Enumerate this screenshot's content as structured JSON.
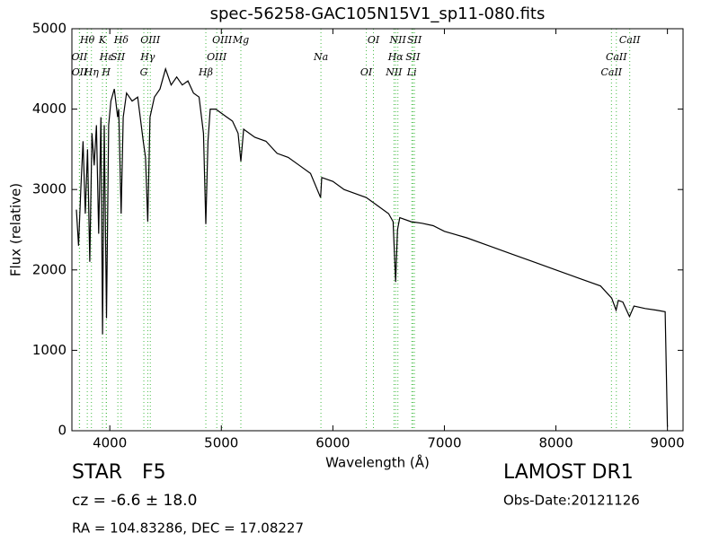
{
  "chart_data": {
    "type": "line",
    "title": "spec-56258-GAC105N15V1_sp11-080.fits",
    "x_label": "Wavelength (Å)",
    "y_label": "Flux (relative)",
    "xlim": [
      3660,
      9140
    ],
    "ylim": [
      0,
      5000
    ],
    "xticks": [
      4000,
      5000,
      6000,
      7000,
      8000,
      9000
    ],
    "yticks": [
      0,
      1000,
      2000,
      3000,
      4000,
      5000
    ],
    "color": "#000000",
    "line_color": "#44bb44",
    "x": [
      3700,
      3720,
      3740,
      3760,
      3780,
      3800,
      3820,
      3840,
      3860,
      3880,
      3900,
      3920,
      3935,
      3950,
      3970,
      3990,
      4010,
      4040,
      4070,
      4080,
      4102,
      4120,
      4150,
      4200,
      4250,
      4300,
      4320,
      4340,
      4360,
      4400,
      4450,
      4500,
      4550,
      4600,
      4650,
      4700,
      4750,
      4800,
      4840,
      4861,
      4880,
      4900,
      4950,
      5000,
      5050,
      5100,
      5150,
      5175,
      5200,
      5250,
      5300,
      5400,
      5500,
      5600,
      5700,
      5800,
      5890,
      5900,
      6000,
      6100,
      6200,
      6300,
      6400,
      6500,
      6540,
      6563,
      6580,
      6600,
      6700,
      6800,
      6900,
      7000,
      7200,
      7400,
      7600,
      7800,
      8000,
      8200,
      8400,
      8500,
      8540,
      8560,
      8600,
      8660,
      8700,
      8800,
      8900,
      8980,
      9000
    ],
    "values": [
      2750,
      2300,
      3000,
      3600,
      2700,
      3500,
      2100,
      3700,
      3300,
      3800,
      2450,
      3900,
      1200,
      3800,
      1400,
      3800,
      4100,
      4250,
      3900,
      4000,
      2700,
      3900,
      4200,
      4100,
      4150,
      3600,
      3400,
      2600,
      3900,
      4150,
      4250,
      4500,
      4300,
      4400,
      4300,
      4350,
      4200,
      4150,
      3700,
      2570,
      3600,
      4000,
      4000,
      3950,
      3900,
      3850,
      3700,
      3350,
      3750,
      3700,
      3650,
      3600,
      3450,
      3400,
      3300,
      3200,
      2900,
      3150,
      3100,
      3000,
      2950,
      2900,
      2800,
      2700,
      2600,
      1850,
      2500,
      2650,
      2600,
      2580,
      2550,
      2480,
      2400,
      2300,
      2200,
      2100,
      2000,
      1900,
      1800,
      1650,
      1500,
      1620,
      1600,
      1420,
      1550,
      1520,
      1500,
      1480,
      50
    ],
    "lines": [
      {
        "label": "Hθ",
        "wavelength": 3798
      },
      {
        "label": "OII",
        "wavelength": 3727
      },
      {
        "label": "OII",
        "wavelength": 3729
      },
      {
        "label": "K",
        "wavelength": 3934
      },
      {
        "label": "Hε",
        "wavelength": 3970
      },
      {
        "label": "Hη",
        "wavelength": 3835
      },
      {
        "label": "Hδ",
        "wavelength": 4102
      },
      {
        "label": "SII",
        "wavelength": 4072
      },
      {
        "label": "H",
        "wavelength": 3968
      },
      {
        "label": "OIII",
        "wavelength": 4363
      },
      {
        "label": "Hγ",
        "wavelength": 4340
      },
      {
        "label": "G",
        "wavelength": 4305
      },
      {
        "label": "OIII",
        "wavelength": 5007
      },
      {
        "label": "OIII",
        "wavelength": 4959
      },
      {
        "label": "Hβ",
        "wavelength": 4861
      },
      {
        "label": "Mg",
        "wavelength": 5175
      },
      {
        "label": "Na",
        "wavelength": 5893
      },
      {
        "label": "OI",
        "wavelength": 6300
      },
      {
        "label": "OI",
        "wavelength": 6364
      },
      {
        "label": "Hα",
        "wavelength": 6563
      },
      {
        "label": "NII",
        "wavelength": 6548
      },
      {
        "label": "NII",
        "wavelength": 6583
      },
      {
        "label": "SII",
        "wavelength": 6717
      },
      {
        "label": "Li",
        "wavelength": 6708
      },
      {
        "label": "SII",
        "wavelength": 6731
      },
      {
        "label": "CaII",
        "wavelength": 8542
      },
      {
        "label": "CaII",
        "wavelength": 8498
      },
      {
        "label": "CaII",
        "wavelength": 8662
      }
    ]
  },
  "info": {
    "class": "STAR",
    "subclass": "F5",
    "cz": "cz = -6.6 ± 18.0",
    "coords": "RA = 104.83286, DEC = 17.08227",
    "survey": "LAMOST DR1",
    "obs_date": "Obs-Date:20121126"
  }
}
